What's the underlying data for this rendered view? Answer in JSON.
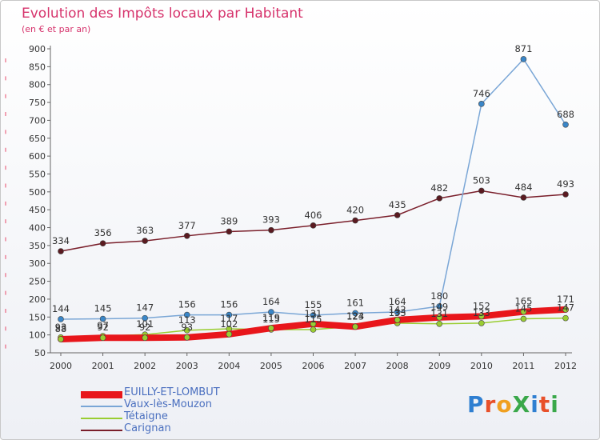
{
  "title": "Evolution des Impôts locaux par Habitant",
  "subtitle": "(en € et par an)",
  "logo": {
    "text": "ProXiti",
    "colors": [
      "#2f7fd1",
      "#e8502a",
      "#f0a020",
      "#3aa84a",
      "#2f7fd1",
      "#e8502a",
      "#3aa84a"
    ]
  },
  "chart_data": {
    "type": "line",
    "title": "Evolution des Impôts locaux par Habitant",
    "subtitle": "(en € et par an)",
    "xlabel": "",
    "ylabel": "",
    "ylim": [
      50,
      900
    ],
    "ytick_step": 50,
    "grid": false,
    "legend_placement": "bottom-left",
    "categories": [
      "2000",
      "2001",
      "2002",
      "2003",
      "2004",
      "2005",
      "2006",
      "2007",
      "2008",
      "2009",
      "2010",
      "2011",
      "2012"
    ],
    "series": [
      {
        "name": "EUILLY-ET-LOMBUT",
        "color": "#e8161b",
        "marker": "#9acd32",
        "width": "thick",
        "values": [
          88,
          92,
          92,
          93,
          102,
          119,
          131,
          123,
          142,
          149,
          152,
          165,
          171
        ]
      },
      {
        "name": "Vaux-lès-Mouzon",
        "color": "#7aa6d6",
        "marker": "#3a86c8",
        "width": "thin",
        "values": [
          144,
          145,
          147,
          156,
          156,
          164,
          155,
          161,
          164,
          180,
          746,
          871,
          688
        ]
      },
      {
        "name": "Tétaigne",
        "color": "#9acd32",
        "marker": "#9acd32",
        "width": "thin",
        "values": [
          93,
          97,
          101,
          113,
          117,
          115,
          115,
          124,
          133,
          131,
          133,
          145,
          147
        ]
      },
      {
        "name": "Carignan",
        "color": "#7a1f2b",
        "marker": "#5a1a20",
        "width": "thin",
        "values": [
          334,
          356,
          363,
          377,
          389,
          393,
          406,
          420,
          435,
          482,
          503,
          484,
          493
        ]
      }
    ]
  }
}
